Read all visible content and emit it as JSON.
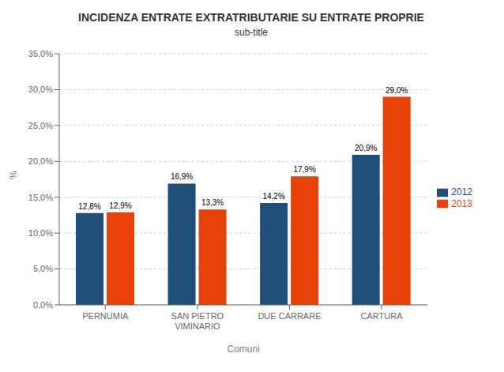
{
  "chart_data": {
    "type": "bar",
    "title": "INCIDENZA ENTRATE EXTRATRIBUTARIE SU ENTRATE PROPRIE",
    "subtitle": "sub-title",
    "xlabel": "Comuni",
    "ylabel": "%",
    "categories": [
      "PERNUMIA",
      "SAN PIETRO VIMINARIO",
      "DUE CARRARE",
      "CARTURA"
    ],
    "series": [
      {
        "name": "2012",
        "color": "#1F4E79",
        "values": [
          12.8,
          16.9,
          14.2,
          20.9
        ],
        "value_labels": [
          "12,8%",
          "16,9%",
          "14,2%",
          "20,9%"
        ]
      },
      {
        "name": "2013",
        "color": "#E8420A",
        "values": [
          12.9,
          13.3,
          17.9,
          29.0
        ],
        "value_labels": [
          "12,9%",
          "13,3%",
          "17,9%",
          "29,0%"
        ]
      }
    ],
    "ylim": [
      0,
      35
    ],
    "yticks": [
      {
        "value": 0,
        "label": "0,0%"
      },
      {
        "value": 5,
        "label": "5,0%"
      },
      {
        "value": 10,
        "label": "10,0%"
      },
      {
        "value": 15,
        "label": "15,0%"
      },
      {
        "value": 20,
        "label": "20,0%"
      },
      {
        "value": 25,
        "label": "25,0%"
      },
      {
        "value": 30,
        "label": "30,0%"
      },
      {
        "value": 35,
        "label": "35,0%"
      }
    ],
    "grid": true,
    "legend": "right",
    "data_labels": true
  }
}
